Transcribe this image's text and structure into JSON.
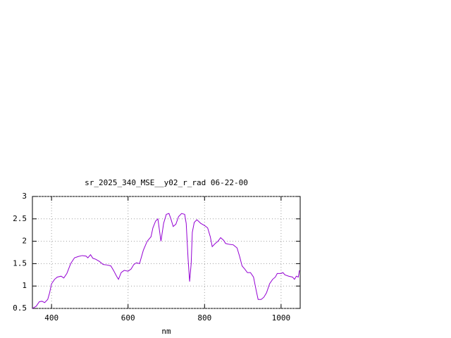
{
  "chart_data": {
    "type": "line",
    "title": "sr_2025_340_MSE__y02_r_rad 06-22-00",
    "x_label": "nm",
    "xlim": [
      350,
      1050
    ],
    "ylim": [
      0.5,
      3
    ],
    "xticks": [
      400,
      600,
      800,
      1000
    ],
    "yticks": [
      0.5,
      1,
      1.5,
      2,
      2.5,
      3
    ],
    "grid": true,
    "series": [
      {
        "color": "#9400d3",
        "x": [
          350,
          360,
          368,
          375,
          382,
          390,
          395,
          400,
          408,
          415,
          425,
          432,
          440,
          450,
          460,
          470,
          480,
          490,
          495,
          502,
          508,
          515,
          525,
          535,
          545,
          555,
          562,
          570,
          575,
          582,
          590,
          600,
          608,
          615,
          622,
          630,
          640,
          650,
          660,
          665,
          672,
          678,
          686,
          693,
          700,
          707,
          712,
          718,
          725,
          732,
          740,
          748,
          752,
          757,
          761,
          765,
          768,
          773,
          780,
          790,
          800,
          808,
          815,
          820,
          828,
          835,
          842,
          850,
          855,
          865,
          875,
          885,
          892,
          898,
          905,
          912,
          920,
          928,
          935,
          940,
          948,
          955,
          962,
          970,
          978,
          985,
          990,
          1000,
          1005,
          1010,
          1020,
          1030,
          1035,
          1040,
          1045,
          1048
        ],
        "values": [
          0.5,
          0.55,
          0.65,
          0.66,
          0.63,
          0.7,
          0.85,
          1.05,
          1.15,
          1.2,
          1.22,
          1.18,
          1.28,
          1.5,
          1.63,
          1.66,
          1.68,
          1.67,
          1.63,
          1.7,
          1.62,
          1.6,
          1.55,
          1.48,
          1.47,
          1.45,
          1.35,
          1.22,
          1.15,
          1.3,
          1.35,
          1.33,
          1.38,
          1.48,
          1.52,
          1.5,
          1.8,
          2.0,
          2.1,
          2.3,
          2.45,
          2.5,
          2.0,
          2.4,
          2.6,
          2.62,
          2.5,
          2.33,
          2.38,
          2.55,
          2.62,
          2.6,
          2.4,
          1.6,
          1.1,
          1.5,
          2.2,
          2.42,
          2.48,
          2.4,
          2.35,
          2.3,
          2.1,
          1.88,
          1.95,
          2.0,
          2.08,
          2.02,
          1.95,
          1.93,
          1.92,
          1.85,
          1.65,
          1.45,
          1.38,
          1.3,
          1.3,
          1.2,
          0.9,
          0.7,
          0.7,
          0.75,
          0.85,
          1.05,
          1.15,
          1.2,
          1.28,
          1.28,
          1.3,
          1.25,
          1.22,
          1.2,
          1.15,
          1.22,
          1.2,
          1.35
        ]
      }
    ]
  }
}
